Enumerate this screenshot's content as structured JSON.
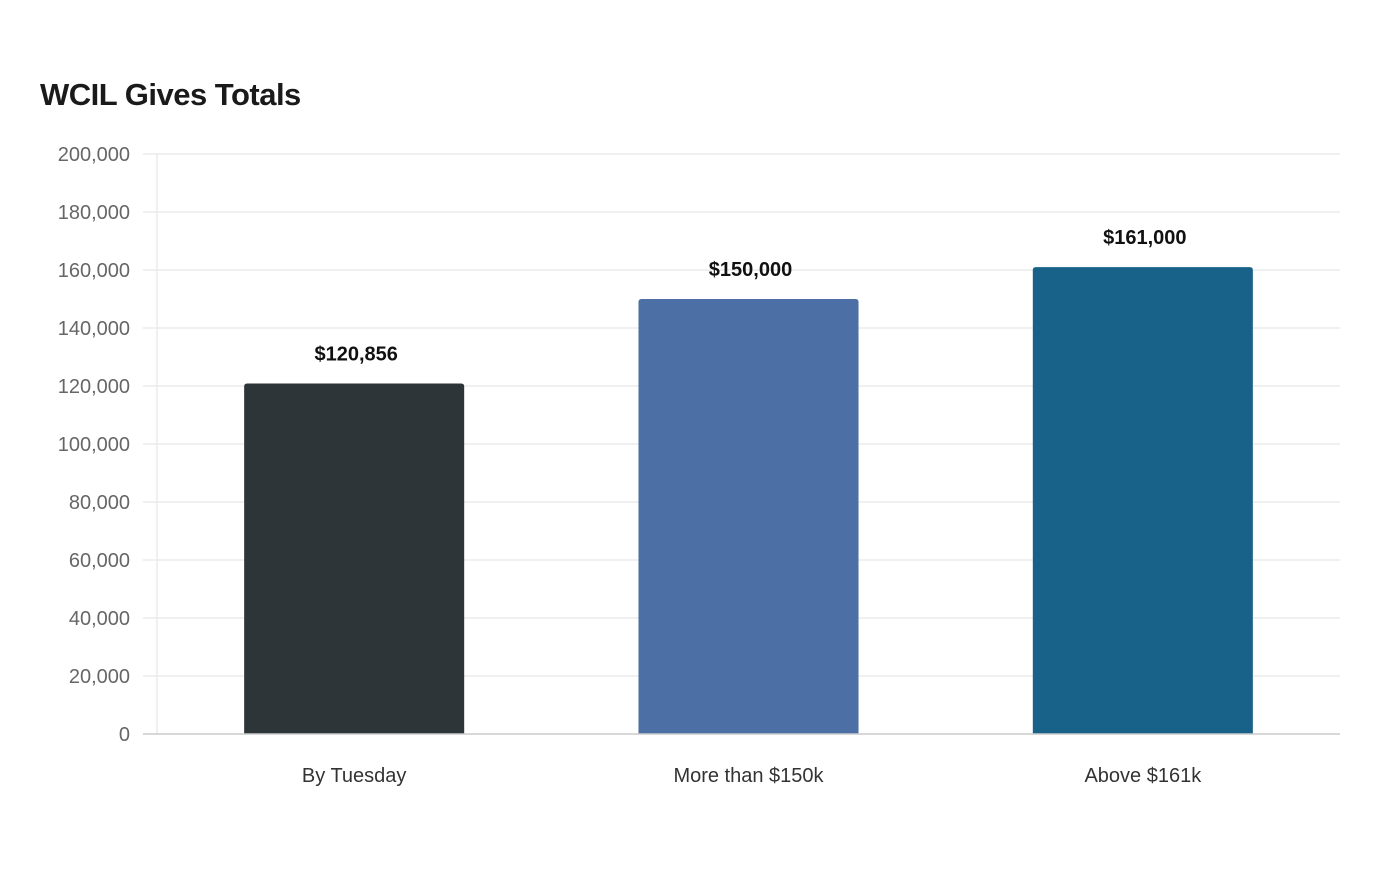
{
  "chart_data": {
    "type": "bar",
    "title": "WCIL Gives Totals",
    "xlabel": "",
    "ylabel": "",
    "categories": [
      "By Tuesday",
      "More than $150k",
      "Above $161k"
    ],
    "values": [
      120856,
      150000,
      161000
    ],
    "data_labels": [
      "$120,856",
      "$150,000",
      "$161,000"
    ],
    "colors": [
      "#2e3538",
      "#4c6fa5",
      "#186188"
    ],
    "ylim": [
      0,
      200000
    ],
    "yticks": [
      0,
      20000,
      40000,
      60000,
      80000,
      100000,
      120000,
      140000,
      160000,
      180000,
      200000
    ],
    "ytick_labels": [
      "0",
      "20,000",
      "40,000",
      "60,000",
      "80,000",
      "100,000",
      "120,000",
      "140,000",
      "160,000",
      "180,000",
      "200,000"
    ],
    "grid": true,
    "legend": "none"
  },
  "colors": {
    "grid": "#ebebeb",
    "axis": "#cccccc"
  }
}
